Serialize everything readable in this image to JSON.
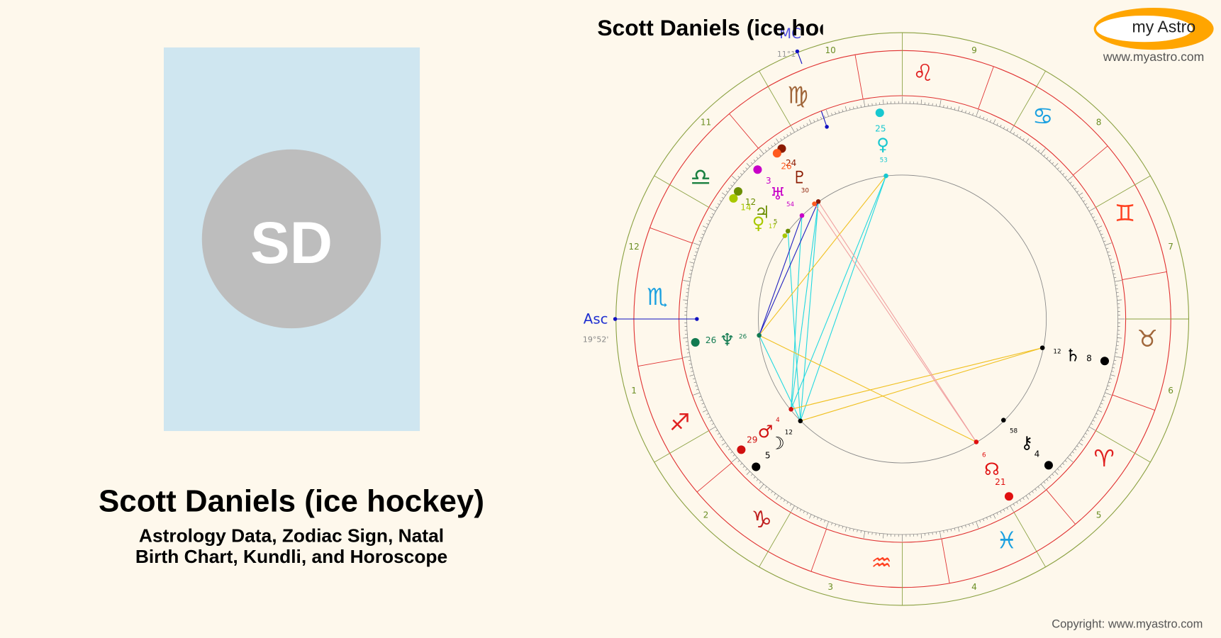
{
  "profile": {
    "initials": "SD",
    "name": "Scott Daniels (ice hockey)",
    "subtitle_lines": [
      "Astrology Data, Zodiac Sign, Natal",
      "Birth Chart, Kundli, and Horoscope"
    ]
  },
  "logo": {
    "text": "my Astro",
    "url": "www.myastro.com"
  },
  "wheel": {
    "asc": {
      "label": "Asc",
      "degree": "19°52'"
    },
    "mc": {
      "label": "MC",
      "degree": "11°1"
    },
    "houses": [
      1,
      2,
      3,
      4,
      5,
      6,
      7,
      8,
      9,
      10,
      11,
      12
    ],
    "signs": [
      "♈",
      "♉",
      "♊",
      "♋",
      "♌",
      "♍",
      "♎",
      "♏",
      "♐",
      "♑",
      "♒",
      "♓"
    ],
    "planets": [
      {
        "glyph": "♀",
        "degree": "25",
        "minute": "53"
      },
      {
        "glyph": "♇",
        "degree": "24",
        "minute": "30"
      },
      {
        "degree": "26"
      },
      {
        "glyph": "♅",
        "degree": "3",
        "minute": "54"
      },
      {
        "glyph": "♃",
        "degree": "12",
        "minute": "5"
      },
      {
        "glyph": "♀",
        "degree": "14",
        "minute": "17"
      },
      {
        "glyph": "♆",
        "degree": "26",
        "minute": "26"
      },
      {
        "glyph": "♂",
        "degree": "29",
        "minute": "4"
      },
      {
        "glyph": "☽",
        "degree": "5",
        "minute": "12"
      },
      {
        "glyph": "☊",
        "degree": "21",
        "minute": "6"
      },
      {
        "glyph": "⚷",
        "degree": "4",
        "minute": "58"
      },
      {
        "glyph": "♄",
        "degree": "8",
        "minute": "12"
      }
    ]
  },
  "copyright": "Copyright: www.myastro.com"
}
